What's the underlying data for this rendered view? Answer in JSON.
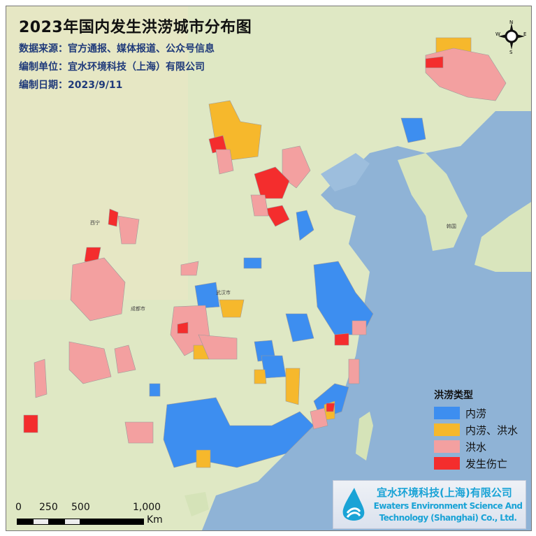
{
  "title": "2023年国内发生洪涝城市分布图",
  "info": {
    "source": "数据来源：官方通报、媒体报道、公众号信息",
    "unit": "编制单位：宜水环境科技（上海）有限公司",
    "date": "编制日期：2023/9/11"
  },
  "legend": {
    "title": "洪涝类型",
    "items": [
      {
        "label": "内涝",
        "color": "#3d8ef0"
      },
      {
        "label": "内涝、洪水",
        "color": "#f6b82c"
      },
      {
        "label": "洪水",
        "color": "#f3a0a0"
      },
      {
        "label": "发生伤亡",
        "color": "#f42d2d"
      }
    ]
  },
  "logo": {
    "cn": "宜水环境科技(上海)有限公司",
    "en1": "Ewaters Environment Science And",
    "en2": "Technology (Shanghai) Co., Ltd."
  },
  "scale": {
    "ticks": [
      "0",
      "250",
      "500",
      "1,000"
    ],
    "unit": "Km"
  },
  "compass": {
    "n": "N",
    "s": "S",
    "e": "E",
    "w": "W"
  },
  "places": {
    "wuhan": "武汉市",
    "chengdu": "成都市",
    "xining": "西宁",
    "korea": "韩国"
  }
}
